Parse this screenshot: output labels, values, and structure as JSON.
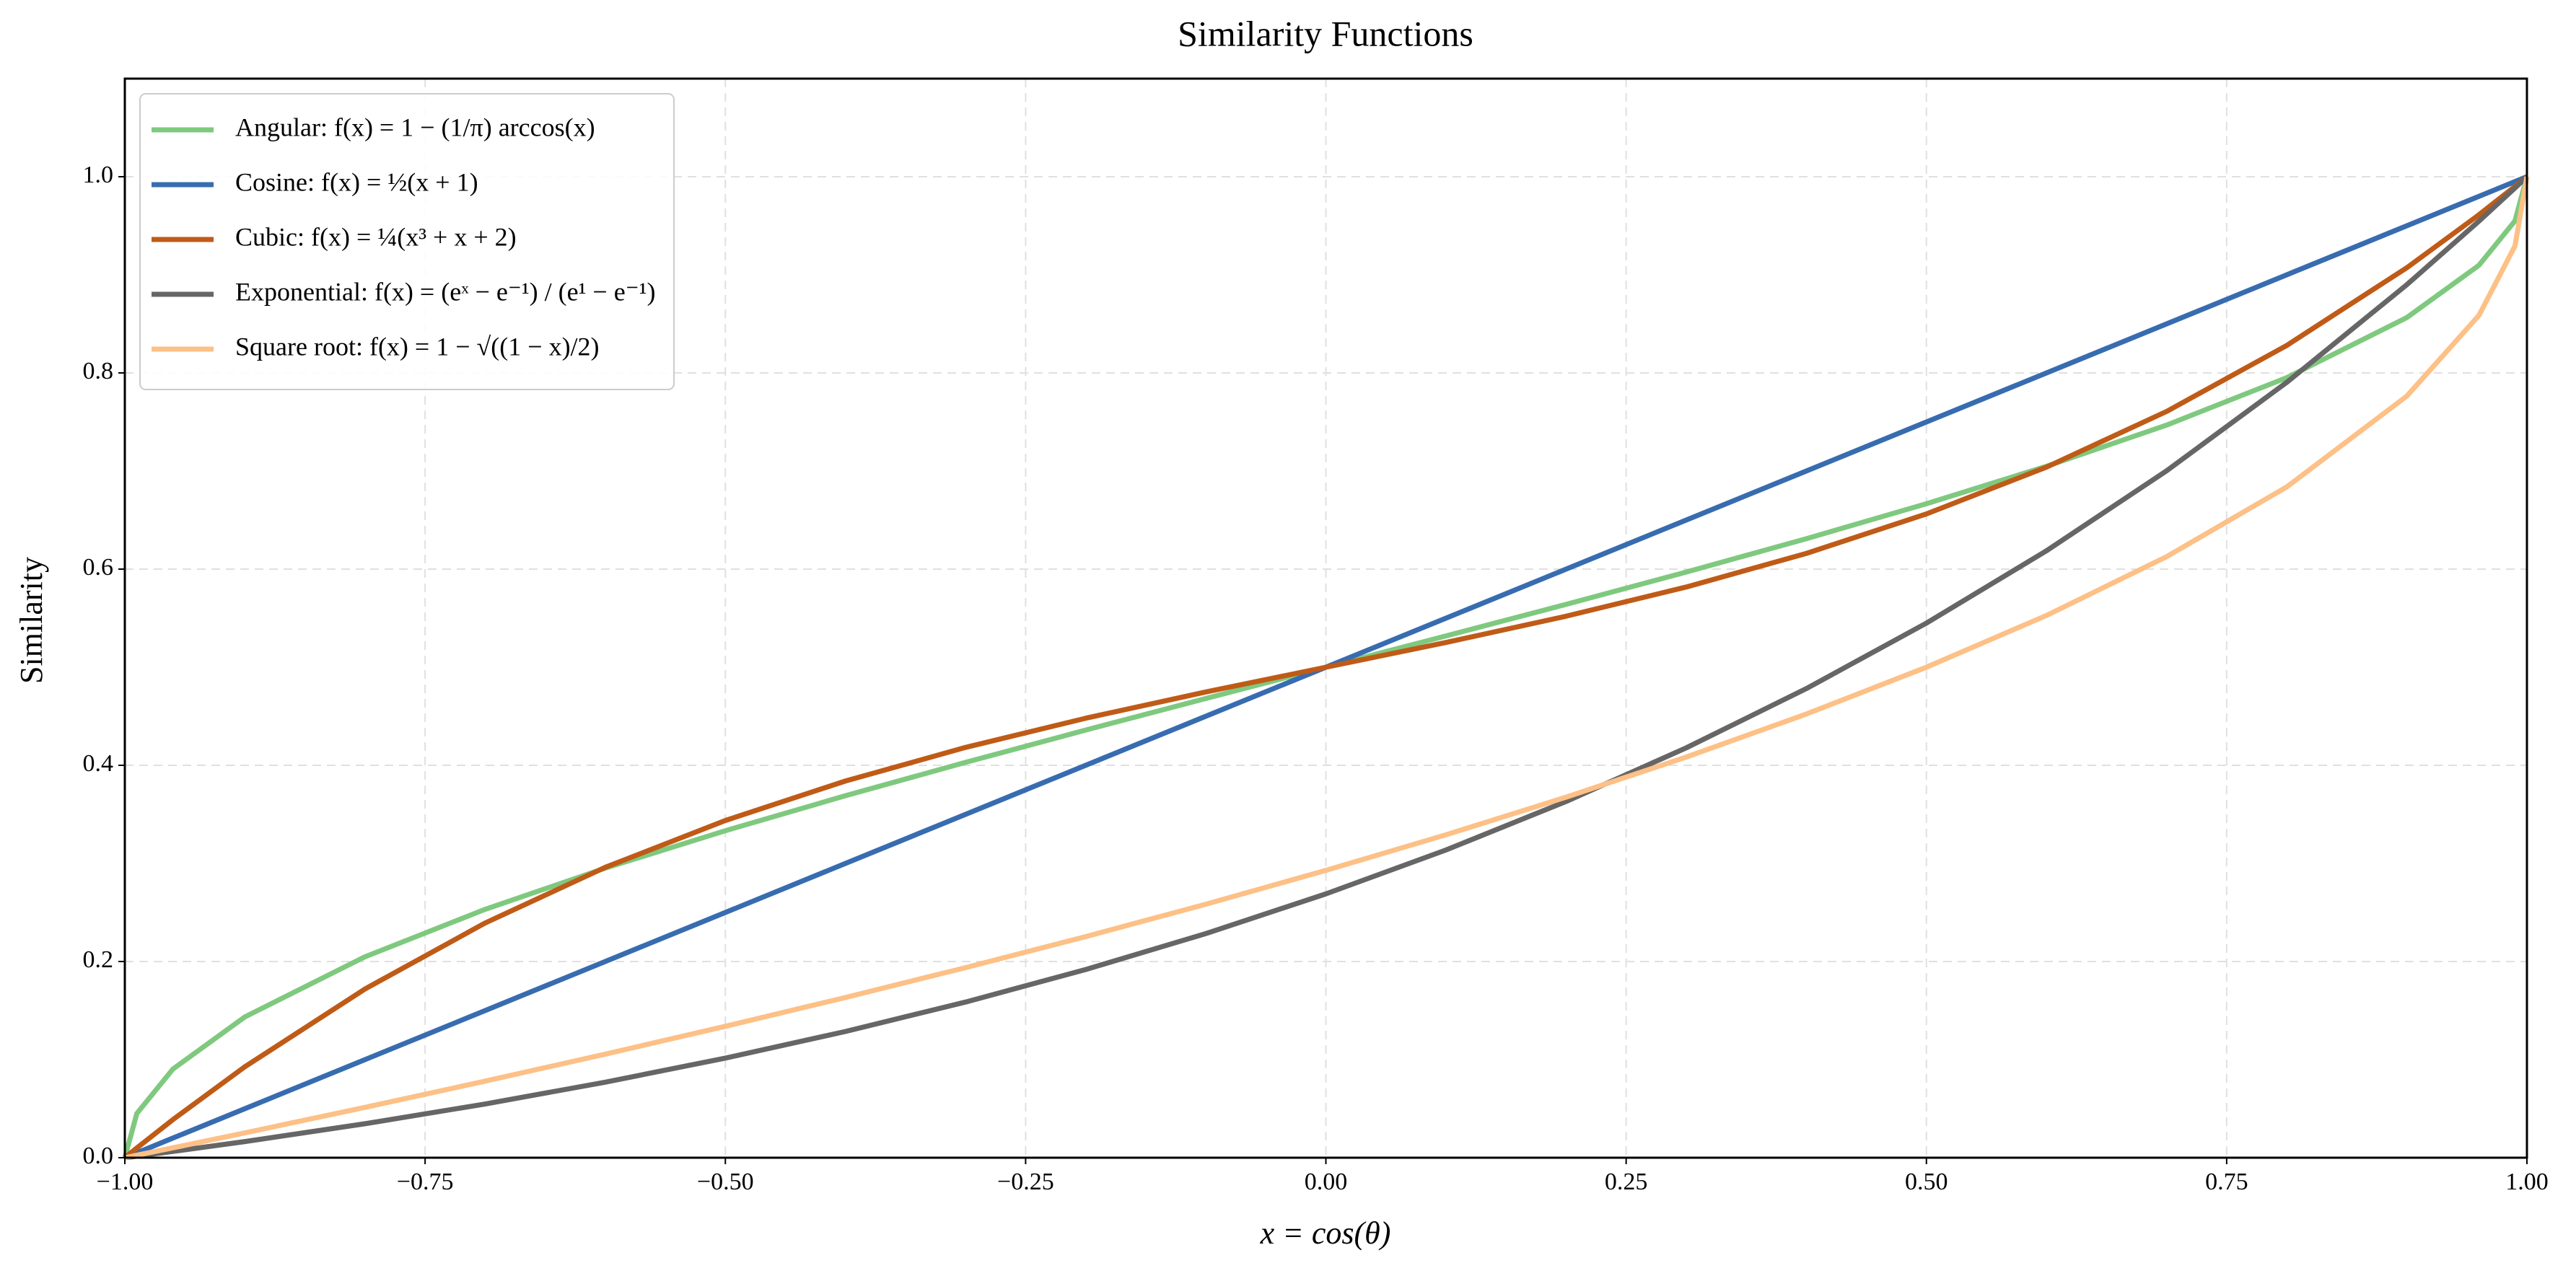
{
  "chart_data": {
    "type": "line",
    "title": "Similarity Functions",
    "x_label": "x = cos(θ)",
    "y_label": "Similarity",
    "x": [
      -1,
      -0.99,
      -0.96,
      -0.9,
      -0.8,
      -0.7,
      -0.6,
      -0.5,
      -0.4,
      -0.3,
      -0.2,
      -0.1,
      0,
      0.1,
      0.2,
      0.3,
      0.4,
      0.5,
      0.6,
      0.7,
      0.8,
      0.9,
      0.96,
      0.99,
      1
    ],
    "series": [
      {
        "name": "Angular: f(x) = 1 − (1/π) arccos(x)",
        "color": "#7fc97f",
        "values": [
          0,
          0.04505,
          0.09033,
          0.14357,
          0.20483,
          0.25318,
          0.29517,
          0.33333,
          0.36901,
          0.40301,
          0.43591,
          0.46811,
          0.5,
          0.53189,
          0.56409,
          0.59699,
          0.63099,
          0.66667,
          0.70483,
          0.74682,
          0.79517,
          0.85643,
          0.90967,
          0.95495,
          1
        ]
      },
      {
        "name": "Cosine: f(x) = ½(x + 1)",
        "color": "#386cb0",
        "values": [
          0,
          0.005,
          0.02,
          0.05,
          0.1,
          0.15,
          0.2,
          0.25,
          0.3,
          0.35,
          0.4,
          0.45,
          0.5,
          0.55,
          0.6,
          0.65,
          0.7,
          0.75,
          0.8,
          0.85,
          0.9,
          0.95,
          0.98,
          0.995,
          1
        ]
      },
      {
        "name": "Cubic: f(x) = ¼(x³ + x + 2)",
        "color": "#bf5b17",
        "values": [
          0,
          0.00993,
          0.03882,
          0.09275,
          0.172,
          0.23925,
          0.296,
          0.34375,
          0.384,
          0.41825,
          0.448,
          0.47475,
          0.5,
          0.52525,
          0.552,
          0.58175,
          0.616,
          0.65625,
          0.704,
          0.76075,
          0.828,
          0.90725,
          0.96118,
          0.99007,
          1
        ]
      },
      {
        "name": "Exponential: f(x) = (eˣ − e⁻¹) / (e¹ − e⁻¹)",
        "color": "#666666",
        "values": [
          0,
          0.001573,
          0.006388,
          0.01646,
          0.03465,
          0.05476,
          0.07698,
          0.10154,
          0.12868,
          0.15867,
          0.19182,
          0.22845,
          0.26894,
          0.31369,
          0.36314,
          0.41779,
          0.47819,
          0.54495,
          0.61872,
          0.70025,
          0.79036,
          0.88994,
          0.95465,
          0.98849,
          1
        ]
      },
      {
        "name": "Square root: f(x) = 1 − √((1 − x)/2)",
        "color": "#fdc086",
        "values": [
          0,
          0.0025,
          0.01005,
          0.02532,
          0.05132,
          0.07805,
          0.10557,
          0.13397,
          0.16334,
          0.19377,
          0.2254,
          0.25838,
          0.29289,
          0.32918,
          0.36754,
          0.40839,
          0.45228,
          0.5,
          0.55279,
          0.6127,
          0.68377,
          0.77639,
          0.85858,
          0.92929,
          1
        ]
      }
    ],
    "xlim": [
      -1,
      1
    ],
    "xticks": [
      {
        "value": -1,
        "label": "−1.00"
      },
      {
        "value": -0.75,
        "label": "−0.75"
      },
      {
        "value": -0.5,
        "label": "−0.50"
      },
      {
        "value": -0.25,
        "label": "−0.25"
      },
      {
        "value": 0,
        "label": "0.00"
      },
      {
        "value": 0.25,
        "label": "0.25"
      },
      {
        "value": 0.5,
        "label": "0.50"
      },
      {
        "value": 0.75,
        "label": "0.75"
      },
      {
        "value": 1,
        "label": "1.00"
      }
    ],
    "ylim": [
      0,
      1.1
    ],
    "yticks": [
      {
        "value": 0,
        "label": "0.0"
      },
      0.2,
      0.4,
      0.6,
      0.8,
      {
        "value": 1,
        "label": "1.0"
      }
    ],
    "grid": true,
    "legend": "upper left"
  }
}
